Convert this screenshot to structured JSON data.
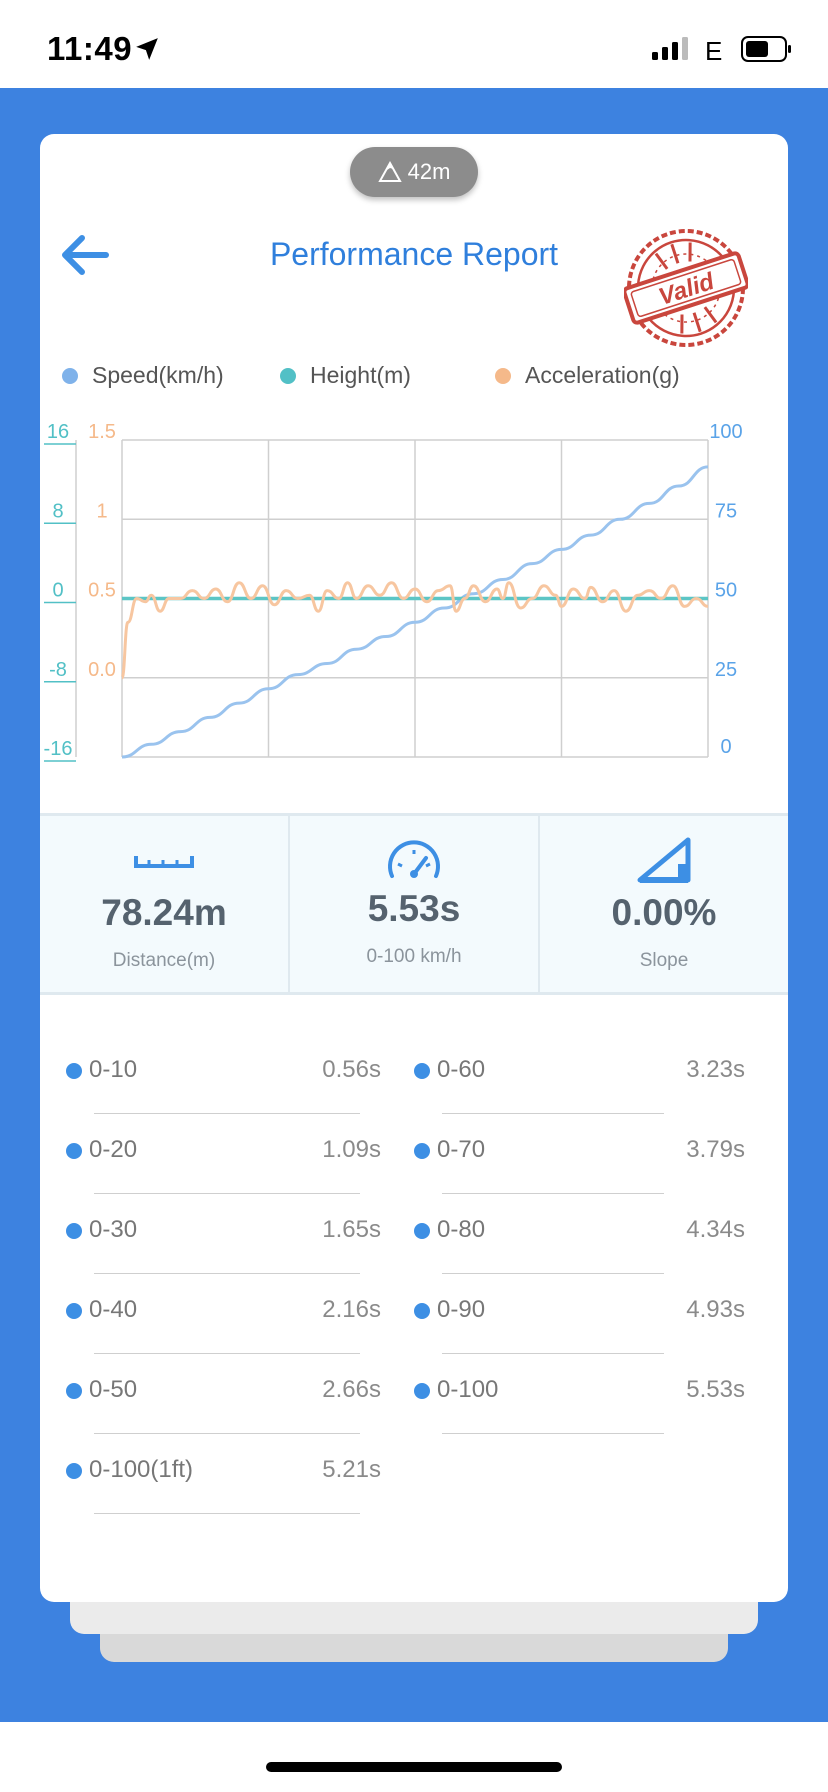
{
  "status": {
    "time": "11:49",
    "network": "E"
  },
  "header": {
    "altitude": "42m",
    "title": "Performance Report",
    "stamp_text": "Valid"
  },
  "legend": [
    {
      "label": "Speed(km/h)",
      "color": "#7fb2ea"
    },
    {
      "label": "Height(m)",
      "color": "#52c0c6"
    },
    {
      "label": "Acceleration(g)",
      "color": "#f5b98a"
    }
  ],
  "chart_data": {
    "type": "line",
    "title": "",
    "axes": {
      "height_axis": {
        "ticks": [
          "16",
          "8",
          "0",
          "-8",
          "-16"
        ],
        "range": [
          -16,
          16
        ],
        "color": "#52c0c6"
      },
      "acceleration_axis": {
        "ticks": [
          "1.5",
          "1",
          "0.5",
          "0.0"
        ],
        "range": [
          0,
          1.5
        ],
        "color": "#f5b98a"
      },
      "speed_axis": {
        "ticks": [
          "100",
          "75",
          "50",
          "25",
          "0"
        ],
        "range": [
          0,
          100
        ],
        "color": "#5aa3e8"
      }
    },
    "grid": true,
    "x_range": [
      0,
      1
    ],
    "series": [
      {
        "name": "Speed(km/h)",
        "color": "#9ac3ee",
        "axis": "speed_axis",
        "points": [
          [
            0,
            0
          ],
          [
            0.05,
            4
          ],
          [
            0.1,
            8
          ],
          [
            0.15,
            12.5
          ],
          [
            0.2,
            17
          ],
          [
            0.25,
            21.5
          ],
          [
            0.3,
            26
          ],
          [
            0.35,
            29.5
          ],
          [
            0.4,
            34
          ],
          [
            0.45,
            38
          ],
          [
            0.5,
            42.5
          ],
          [
            0.55,
            47
          ],
          [
            0.6,
            51.5
          ],
          [
            0.65,
            56
          ],
          [
            0.7,
            61
          ],
          [
            0.75,
            65.5
          ],
          [
            0.8,
            70
          ],
          [
            0.85,
            75
          ],
          [
            0.9,
            80
          ],
          [
            0.95,
            85.5
          ],
          [
            1.0,
            91.5
          ]
        ]
      },
      {
        "name": "Height(m)",
        "color": "#5cc5c5",
        "axis": "height_axis",
        "points": [
          [
            0,
            0
          ],
          [
            0.25,
            0
          ],
          [
            0.5,
            0
          ],
          [
            0.75,
            0
          ],
          [
            1.0,
            0
          ]
        ]
      },
      {
        "name": "Acceleration(g)",
        "color": "#f7c6a0",
        "axis": "acceleration_axis",
        "points": [
          [
            0,
            0
          ],
          [
            0.01,
            0.35
          ],
          [
            0.025,
            0.5
          ],
          [
            0.04,
            0.48
          ],
          [
            0.05,
            0.52
          ],
          [
            0.065,
            0.42
          ],
          [
            0.08,
            0.5
          ],
          [
            0.1,
            0.5
          ],
          [
            0.12,
            0.55
          ],
          [
            0.14,
            0.5
          ],
          [
            0.16,
            0.56
          ],
          [
            0.18,
            0.48
          ],
          [
            0.2,
            0.6
          ],
          [
            0.22,
            0.5
          ],
          [
            0.24,
            0.58
          ],
          [
            0.26,
            0.46
          ],
          [
            0.28,
            0.55
          ],
          [
            0.3,
            0.5
          ],
          [
            0.32,
            0.52
          ],
          [
            0.335,
            0.42
          ],
          [
            0.35,
            0.55
          ],
          [
            0.37,
            0.5
          ],
          [
            0.385,
            0.6
          ],
          [
            0.4,
            0.5
          ],
          [
            0.42,
            0.58
          ],
          [
            0.44,
            0.52
          ],
          [
            0.46,
            0.6
          ],
          [
            0.48,
            0.5
          ],
          [
            0.5,
            0.56
          ],
          [
            0.52,
            0.48
          ],
          [
            0.54,
            0.55
          ],
          [
            0.56,
            0.58
          ],
          [
            0.57,
            0.42
          ],
          [
            0.585,
            0.5
          ],
          [
            0.6,
            0.58
          ],
          [
            0.62,
            0.48
          ],
          [
            0.64,
            0.56
          ],
          [
            0.65,
            0.5
          ],
          [
            0.66,
            0.6
          ],
          [
            0.68,
            0.44
          ],
          [
            0.7,
            0.5
          ],
          [
            0.72,
            0.58
          ],
          [
            0.74,
            0.52
          ],
          [
            0.75,
            0.45
          ],
          [
            0.77,
            0.56
          ],
          [
            0.79,
            0.5
          ],
          [
            0.8,
            0.57
          ],
          [
            0.82,
            0.48
          ],
          [
            0.84,
            0.55
          ],
          [
            0.86,
            0.42
          ],
          [
            0.88,
            0.52
          ],
          [
            0.9,
            0.55
          ],
          [
            0.92,
            0.5
          ],
          [
            0.94,
            0.58
          ],
          [
            0.96,
            0.45
          ],
          [
            0.98,
            0.5
          ],
          [
            1.0,
            0.45
          ]
        ]
      }
    ]
  },
  "stats": [
    {
      "icon": "ruler-icon",
      "value": "78.24m",
      "label": "Distance(m)"
    },
    {
      "icon": "speedometer-icon",
      "value": "5.53s",
      "label": "0-100 km/h"
    },
    {
      "icon": "slope-icon",
      "value": "0.00%",
      "label": "Slope"
    }
  ],
  "splits": [
    {
      "label": "0-10",
      "time": "0.56s"
    },
    {
      "label": "0-60",
      "time": "3.23s"
    },
    {
      "label": "0-20",
      "time": "1.09s"
    },
    {
      "label": "0-70",
      "time": "3.79s"
    },
    {
      "label": "0-30",
      "time": "1.65s"
    },
    {
      "label": "0-80",
      "time": "4.34s"
    },
    {
      "label": "0-40",
      "time": "2.16s"
    },
    {
      "label": "0-90",
      "time": "4.93s"
    },
    {
      "label": "0-50",
      "time": "2.66s"
    },
    {
      "label": "0-100",
      "time": "5.53s"
    },
    {
      "label": "0-100(1ft)",
      "time": "5.21s"
    }
  ],
  "colors": {
    "brand_blue": "#3d82e0",
    "title_blue": "#2f7fdc",
    "stamp_red": "#c9463d"
  }
}
